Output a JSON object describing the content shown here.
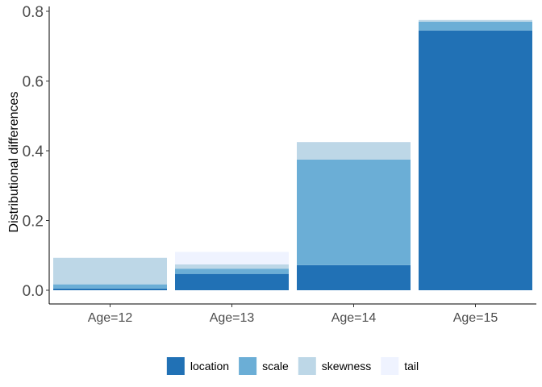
{
  "chart_data": {
    "type": "bar",
    "stacked": true,
    "title": "",
    "xlabel": "",
    "ylabel": "Distributional differences",
    "categories": [
      "Age=12",
      "Age=13",
      "Age=14",
      "Age=15"
    ],
    "ylim": [
      0,
      0.8
    ],
    "y_ticks": [
      0.0,
      0.2,
      0.4,
      0.6,
      0.8
    ],
    "y_tick_labels": [
      "0.0",
      "0.2",
      "0.4",
      "0.6",
      "0.8"
    ],
    "grid": false,
    "legend_position": "bottom",
    "series": [
      {
        "name": "location",
        "color": "#2171b5",
        "values": [
          0.005,
          0.047,
          0.072,
          0.745
        ]
      },
      {
        "name": "scale",
        "color": "#6baed6",
        "values": [
          0.012,
          0.015,
          0.303,
          0.025
        ]
      },
      {
        "name": "skewness",
        "color": "#bdd7e7",
        "values": [
          0.076,
          0.012,
          0.05,
          0.005
        ]
      },
      {
        "name": "tail",
        "color": "#eff3ff",
        "values": [
          0.0,
          0.036,
          0.0,
          0.0
        ]
      }
    ]
  }
}
